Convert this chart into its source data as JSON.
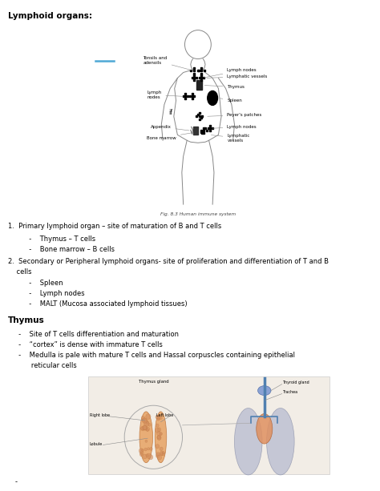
{
  "background_color": "#ffffff",
  "title": "Lymphoid organs:",
  "body_text_color": "#000000",
  "title_fontsize": 7.5,
  "body_fontsize": 6.0,
  "label_fontsize": 4.0,
  "caption_fontsize": 4.2,
  "blue_line_color": "#4fa8d5",
  "section1_header": "1.  Primary lymphoid organ – site of maturation of B and T cells",
  "section1_sub1": "          -    Thymus – T cells",
  "section1_sub2": "          -    Bone marrow – B cells",
  "section2_header_a": "2.  Secondary or Peripheral lymphoid organs- site of proliferation and differentiation of T and B",
  "section2_header_b": "    cells",
  "section2_sub1": "          -    Spleen",
  "section2_sub2": "          -    Lymph nodes",
  "section2_sub3": "          -    MALT (Mucosa associated lymphoid tissues)",
  "section3_title": "Thymus",
  "section3_sub1": "     -    Site of T cells differentiation and maturation",
  "section3_sub2": "     -    “cortex” is dense with immature T cells",
  "section3_sub3a": "     -    Medulla is pale with mature T cells and Hassal corpuscles containing epithelial",
  "section3_sub3b": "           reticular cells",
  "fig_caption": "Fig. 8.3 Human immune system"
}
